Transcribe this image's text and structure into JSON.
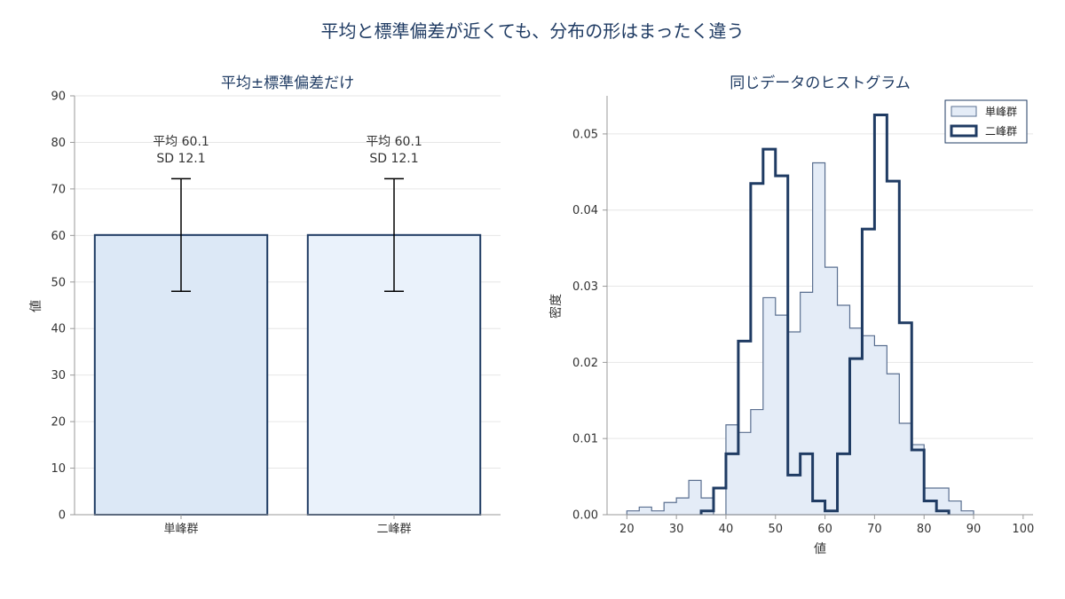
{
  "suptitle": "平均と標準偏差が近くても、分布の形はまったく違う",
  "colors": {
    "navy": "#1f3b63",
    "bar1_fill": "#dce8f6",
    "bar2_fill": "#eaf2fb",
    "hist1_fill": "#e4ecf7",
    "hist1_edge": "#5a6f90"
  },
  "chart_data": [
    {
      "type": "bar",
      "title": "平均±標準偏差だけ",
      "ylabel": "値",
      "xlabel": "",
      "ylim": [
        0,
        90
      ],
      "yticks": [
        "0",
        "10",
        "20",
        "30",
        "40",
        "50",
        "60",
        "70",
        "80",
        "90"
      ],
      "categories": [
        "単峰群",
        "二峰群"
      ],
      "values": [
        60.1,
        60.1
      ],
      "errors": [
        12.1,
        12.1
      ],
      "annotations": [
        {
          "line1": "平均 60.1",
          "line2": "SD 12.1"
        },
        {
          "line1": "平均 60.1",
          "line2": "SD 12.1"
        }
      ],
      "grid": true
    },
    {
      "type": "histogram",
      "title": "同じデータのヒストグラム",
      "xlabel": "値",
      "ylabel": "密度",
      "xlim": [
        16,
        102
      ],
      "ylim": [
        0,
        0.055
      ],
      "xticks": [
        "20",
        "30",
        "40",
        "50",
        "60",
        "70",
        "80",
        "90",
        "100"
      ],
      "yticks": [
        "0.00",
        "0.01",
        "0.02",
        "0.03",
        "0.04",
        "0.05"
      ],
      "bin_width": 2.5,
      "legend_position": "top-right",
      "grid": true,
      "series": [
        {
          "name": "単峰群",
          "style": "filled",
          "bin_start": 20,
          "density": [
            0.0005,
            0.001,
            0.0005,
            0.0016,
            0.0022,
            0.0045,
            0.0022,
            0.0,
            0.0118,
            0.0108,
            0.0138,
            0.0285,
            0.0262,
            0.024,
            0.0292,
            0.0462,
            0.0325,
            0.0275,
            0.0245,
            0.0235,
            0.0222,
            0.0185,
            0.012,
            0.0092,
            0.0035,
            0.0035,
            0.0018,
            0.0005
          ]
        },
        {
          "name": "二峰群",
          "style": "step",
          "bin_start": 35,
          "density": [
            0.0005,
            0.0035,
            0.008,
            0.0228,
            0.0435,
            0.048,
            0.0445,
            0.0052,
            0.008,
            0.0018,
            0.0005,
            0.008,
            0.0205,
            0.0375,
            0.0525,
            0.0438,
            0.0252,
            0.0085,
            0.0018,
            0.0005
          ]
        }
      ]
    }
  ]
}
